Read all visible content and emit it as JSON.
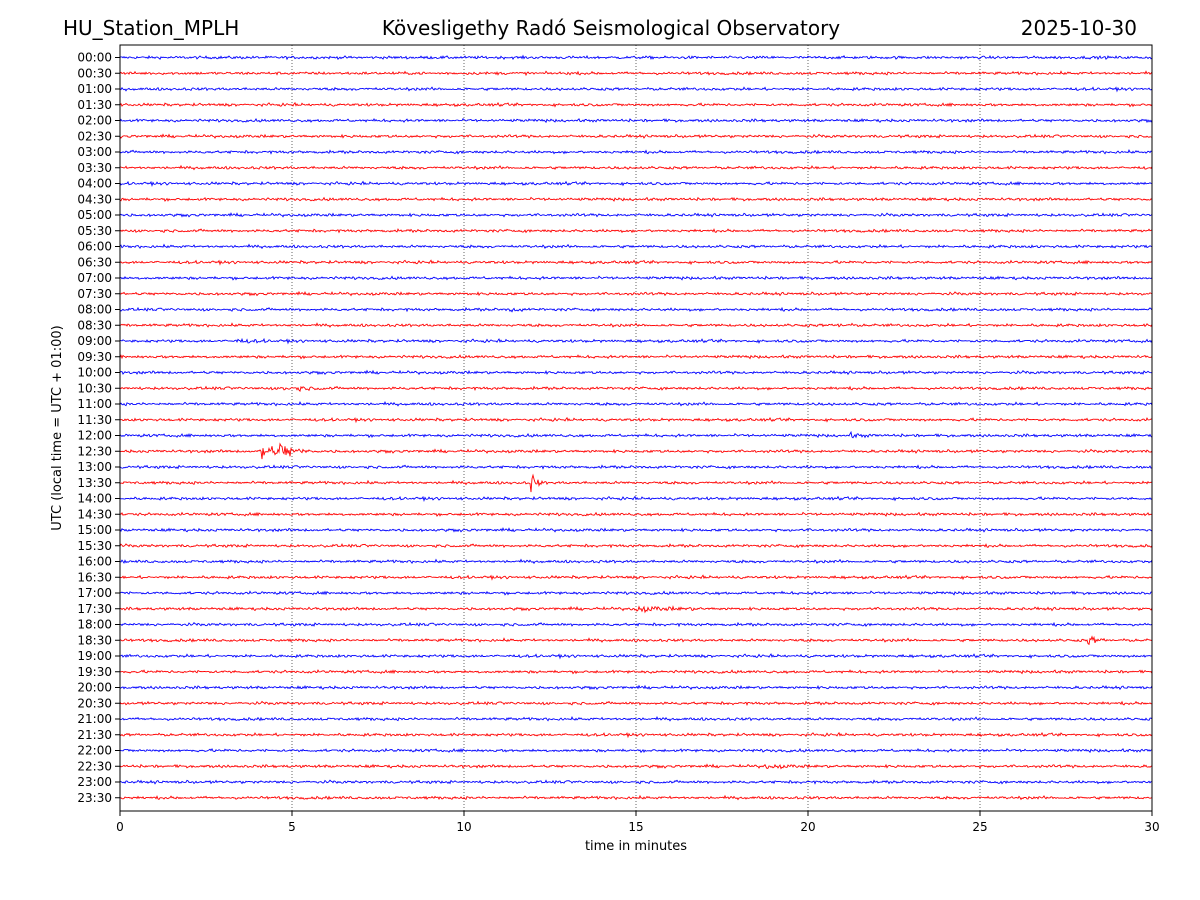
{
  "chart_data": {
    "type": "line",
    "title": "Kövesligethy Radó Seismological Observatory",
    "station": "HU_Station_MPLH",
    "date": "2025-10-30",
    "xlabel": "time in minutes",
    "ylabel": "UTC (local time = UTC + 01:00)",
    "xlim": [
      0,
      30
    ],
    "x_ticks": [
      0,
      5,
      10,
      15,
      20,
      25,
      30
    ],
    "x_tick_labels": [
      "0",
      "5",
      "10",
      "15",
      "20",
      "25",
      "30"
    ],
    "grid": "vertical dotted lines at 5-minute intervals",
    "trace_labels": [
      "00:00",
      "00:30",
      "01:00",
      "01:30",
      "02:00",
      "02:30",
      "03:00",
      "03:30",
      "04:00",
      "04:30",
      "05:00",
      "05:30",
      "06:00",
      "06:30",
      "07:00",
      "07:30",
      "08:00",
      "08:30",
      "09:00",
      "09:30",
      "10:00",
      "10:30",
      "11:00",
      "11:30",
      "12:00",
      "12:30",
      "13:00",
      "13:30",
      "14:00",
      "14:30",
      "15:00",
      "15:30",
      "16:00",
      "16:30",
      "17:00",
      "17:30",
      "18:00",
      "18:30",
      "19:00",
      "19:30",
      "20:00",
      "20:30",
      "21:00",
      "21:30",
      "22:00",
      "22:30",
      "23:00",
      "23:30"
    ],
    "trace_colors": [
      "#0000ff",
      "#ff0000"
    ],
    "events": [
      {
        "trace": "08:00",
        "minute": 11.4,
        "amplitude": 1.2,
        "duration_min": 0.4
      },
      {
        "trace": "08:30",
        "minute": 20.9,
        "amplitude": 1.3,
        "duration_min": 0.5
      },
      {
        "trace": "09:00",
        "minute": 3.4,
        "amplitude": 1.0,
        "duration_min": 1.0
      },
      {
        "trace": "10:30",
        "minute": 4.8,
        "amplitude": 1.4,
        "duration_min": 1.4
      },
      {
        "trace": "12:00",
        "minute": 21.3,
        "amplitude": 1.0,
        "duration_min": 0.6
      },
      {
        "trace": "12:30",
        "minute": 4.2,
        "amplitude": 9.0,
        "duration_min": 0.5
      },
      {
        "trace": "12:30",
        "minute": 4.7,
        "amplitude": 6.0,
        "duration_min": 0.8
      },
      {
        "trace": "13:30",
        "minute": 12.0,
        "amplitude": 6.0,
        "duration_min": 0.3
      },
      {
        "trace": "17:30",
        "minute": 15.0,
        "amplitude": 1.6,
        "duration_min": 2.0
      },
      {
        "trace": "18:30",
        "minute": 28.2,
        "amplitude": 2.5,
        "duration_min": 0.5
      },
      {
        "trace": "22:30",
        "minute": 18.8,
        "amplitude": 1.0,
        "duration_min": 1.2
      }
    ]
  }
}
